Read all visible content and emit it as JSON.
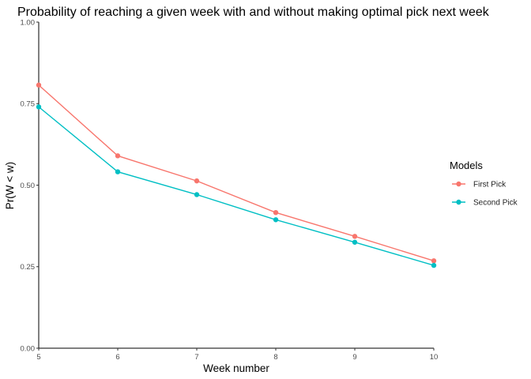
{
  "chart_data": {
    "type": "line",
    "title": "Probability of reaching a given week with and without making optimal pick next week",
    "xlabel": "Week number",
    "ylabel": "Pr(W < w)",
    "x": [
      5,
      6,
      7,
      8,
      9,
      10
    ],
    "xlim": [
      5,
      10
    ],
    "ylim": [
      0,
      1
    ],
    "x_ticks": [
      "5",
      "6",
      "7",
      "8",
      "9",
      "10"
    ],
    "y_ticks": [
      "0.00",
      "0.25",
      "0.50",
      "0.75",
      "1.00"
    ],
    "grid": false,
    "legend": {
      "title": "Models",
      "placement": "right"
    },
    "series": [
      {
        "name": "First Pick",
        "color": "#F8766D",
        "values": [
          0.807,
          0.59,
          0.513,
          0.416,
          0.343,
          0.268
        ]
      },
      {
        "name": "Second Pick",
        "color": "#00BFC4",
        "values": [
          0.74,
          0.541,
          0.471,
          0.394,
          0.325,
          0.254
        ]
      }
    ]
  }
}
